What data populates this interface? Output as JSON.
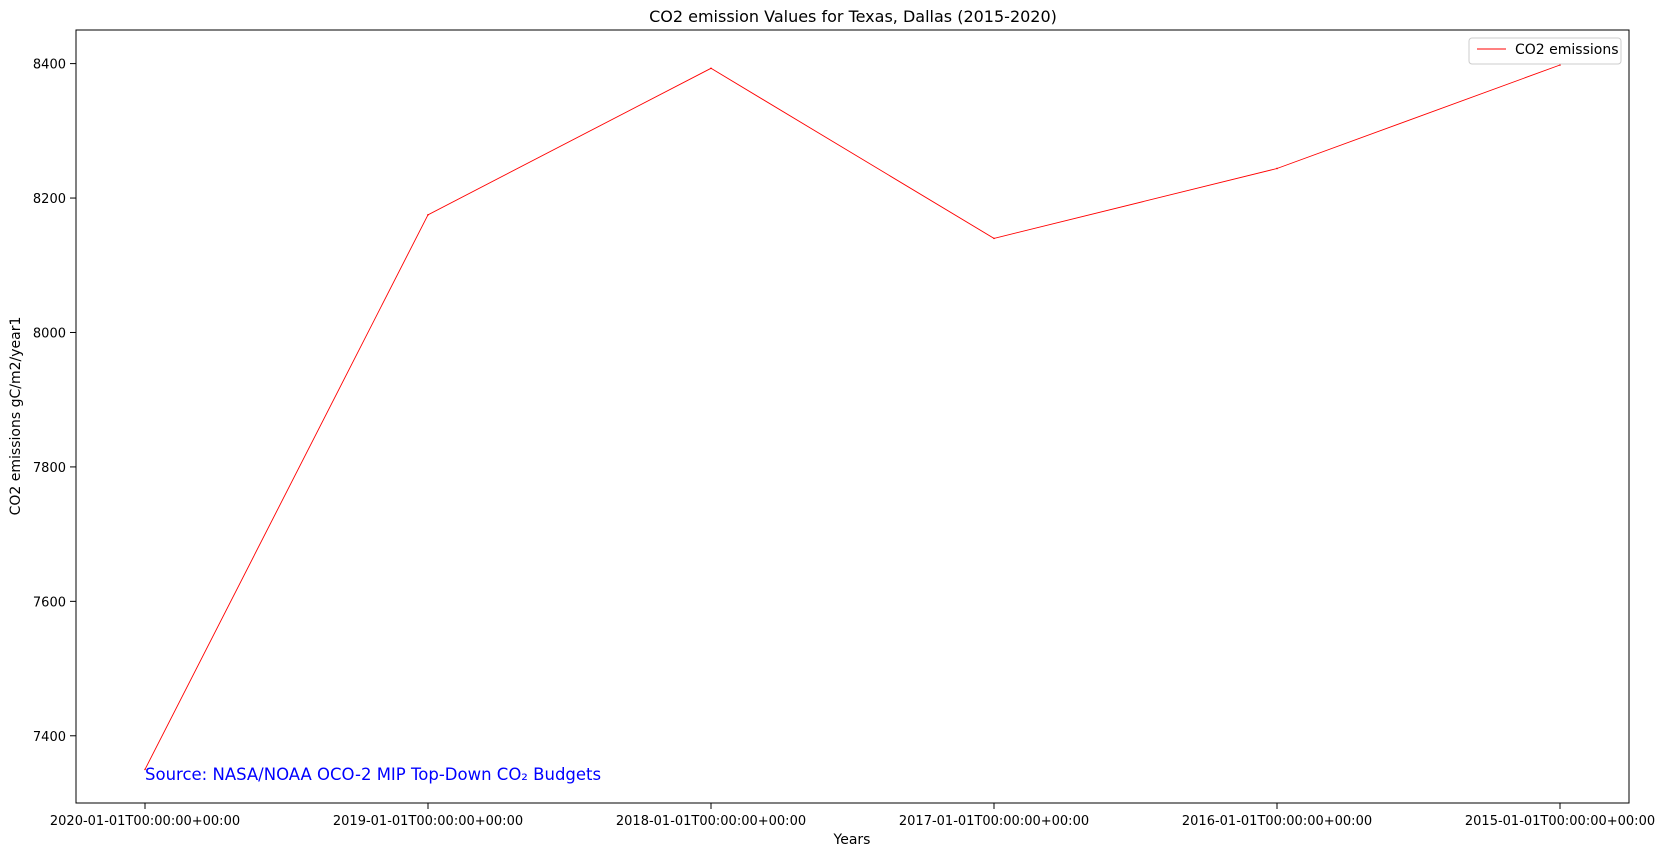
{
  "chart_data": {
    "type": "line",
    "title": "CO2 emission Values for Texas, Dallas (2015-2020)",
    "xlabel": "Years",
    "ylabel": "CO2 emissions gC/m2/year1",
    "categories": [
      "2020-01-01T00:00:00+00:00",
      "2019-01-01T00:00:00+00:00",
      "2018-01-01T00:00:00+00:00",
      "2017-01-01T00:00:00+00:00",
      "2016-01-01T00:00:00+00:00",
      "2015-01-01T00:00:00+00:00"
    ],
    "series": [
      {
        "name": "CO2 emissions",
        "color": "#ff0000",
        "values": [
          7350,
          8175,
          8393,
          8140,
          8244,
          8398
        ]
      }
    ],
    "ylim": [
      7300,
      8450
    ],
    "yticks": [
      7400,
      7600,
      7800,
      8000,
      8200,
      8400
    ],
    "grid": false,
    "legend_position": "upper right",
    "annotation": {
      "text": "Source: NASA/NOAA OCO-2 MIP Top-Down CO₂ Budgets",
      "color": "#0000ff"
    }
  }
}
